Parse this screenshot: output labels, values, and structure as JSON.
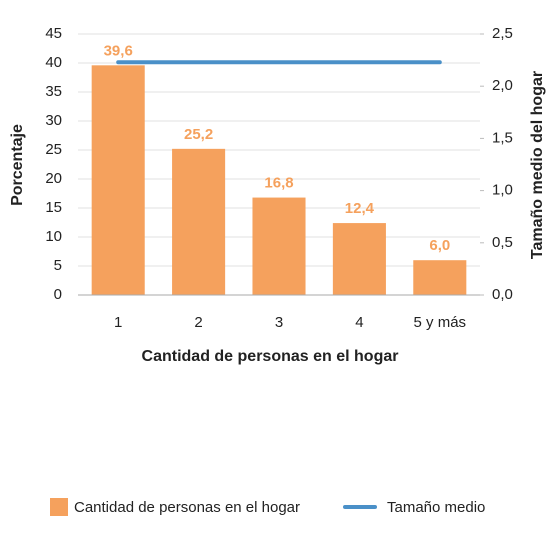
{
  "chart_data": {
    "type": "bar",
    "xlabel": "Cantidad de personas en el hogar",
    "ylabel": "Porcentaje",
    "y2label": "Tamaño medio del hogar",
    "categories": [
      "1",
      "2",
      "3",
      "4",
      "5 y más"
    ],
    "series": [
      {
        "name": "Cantidad de personas en el hogar",
        "type": "bar",
        "color": "#f5a15d",
        "values": [
          39.6,
          25.2,
          16.8,
          12.4,
          6.0
        ],
        "value_labels": [
          "39,6",
          "25,2",
          "16,8",
          "12,4",
          "6,0"
        ]
      },
      {
        "name": "Tamaño medio",
        "type": "line",
        "axis": "y2",
        "color": "#4a90c8",
        "values": [
          2.23,
          2.23,
          2.23,
          2.23,
          2.23
        ]
      }
    ],
    "ylim": [
      0,
      45
    ],
    "yticks": [
      0,
      5,
      10,
      15,
      20,
      25,
      30,
      35,
      40,
      45
    ],
    "y2lim": [
      0,
      2.5
    ],
    "y2ticks": [
      {
        "value": 0,
        "label": "0,0"
      },
      {
        "value": 0.5,
        "label": "0,5"
      },
      {
        "value": 1,
        "label": "1,0"
      },
      {
        "value": 1.5,
        "label": "1,5"
      },
      {
        "value": 2,
        "label": "2,0"
      },
      {
        "value": 2.5,
        "label": "2,5"
      }
    ],
    "grid": true
  }
}
